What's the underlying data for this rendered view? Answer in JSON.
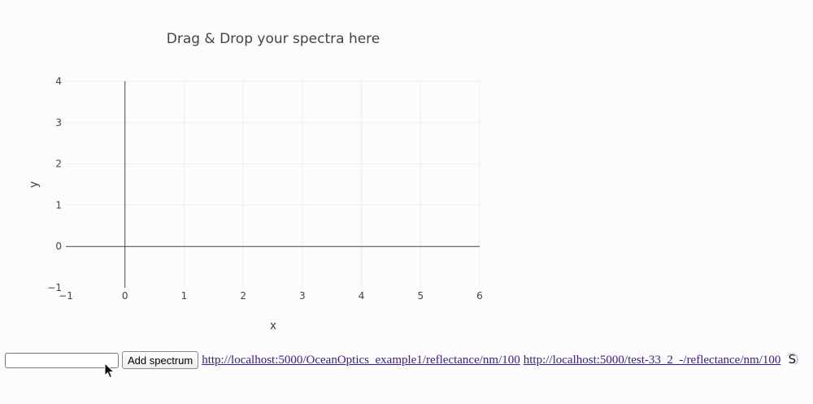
{
  "chart_data": {
    "type": "scatter",
    "title": "Drag & Drop your spectra here",
    "xlabel": "x",
    "ylabel": "y",
    "xlim": [
      -1,
      6
    ],
    "ylim": [
      -1,
      4
    ],
    "xticks": [
      -1,
      0,
      1,
      2,
      3,
      4,
      5,
      6
    ],
    "yticks": [
      -1,
      0,
      1,
      2,
      3,
      4
    ],
    "xtick_labels": [
      "−1",
      "0",
      "1",
      "2",
      "3",
      "4",
      "5",
      "6"
    ],
    "ytick_labels": [
      "−1",
      "0",
      "1",
      "2",
      "3",
      "4"
    ],
    "grid": true,
    "series": []
  },
  "controls": {
    "url_input_value": "",
    "add_button_label": "Add spectrum"
  },
  "links": [
    {
      "text": "http://localhost:5000/OceanOptics_example1/reflectance/nm/100"
    },
    {
      "text": "http://localhost:5000/test-33_2_-/reflectance/nm/100"
    }
  ],
  "extension_icon": {
    "letter": "S",
    "name": "s-extension-icon"
  },
  "colors": {
    "background": "#fcfbfe",
    "grid": "#eeeeee",
    "zeroline": "#444444",
    "link": "#3a1a8c"
  }
}
